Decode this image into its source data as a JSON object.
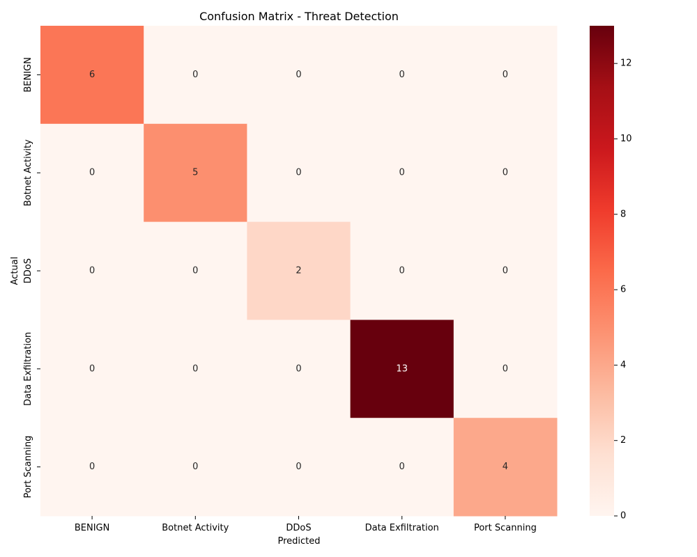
{
  "chart_data": {
    "type": "heatmap",
    "title": "Confusion Matrix - Threat Detection",
    "xlabel": "Predicted",
    "ylabel": "Actual",
    "x_categories": [
      "BENIGN",
      "Botnet Activity",
      "DDoS",
      "Data Exfiltration",
      "Port Scanning"
    ],
    "y_categories": [
      "BENIGN",
      "Botnet Activity",
      "DDoS",
      "Data Exfiltration",
      "Port Scanning"
    ],
    "matrix": [
      [
        6,
        0,
        0,
        0,
        0
      ],
      [
        0,
        5,
        0,
        0,
        0
      ],
      [
        0,
        0,
        2,
        0,
        0
      ],
      [
        0,
        0,
        0,
        13,
        0
      ],
      [
        0,
        0,
        0,
        0,
        4
      ]
    ],
    "colorbar": {
      "min": 0,
      "max": 13,
      "ticks": [
        0,
        2,
        4,
        6,
        8,
        10,
        12
      ],
      "colormap": "Reds",
      "stops": [
        "#fff5f0",
        "#fee0d2",
        "#fcbba1",
        "#fc9272",
        "#fb6a4a",
        "#ef3b2c",
        "#cb181d",
        "#a50f15",
        "#67000d"
      ]
    },
    "grid": false
  }
}
